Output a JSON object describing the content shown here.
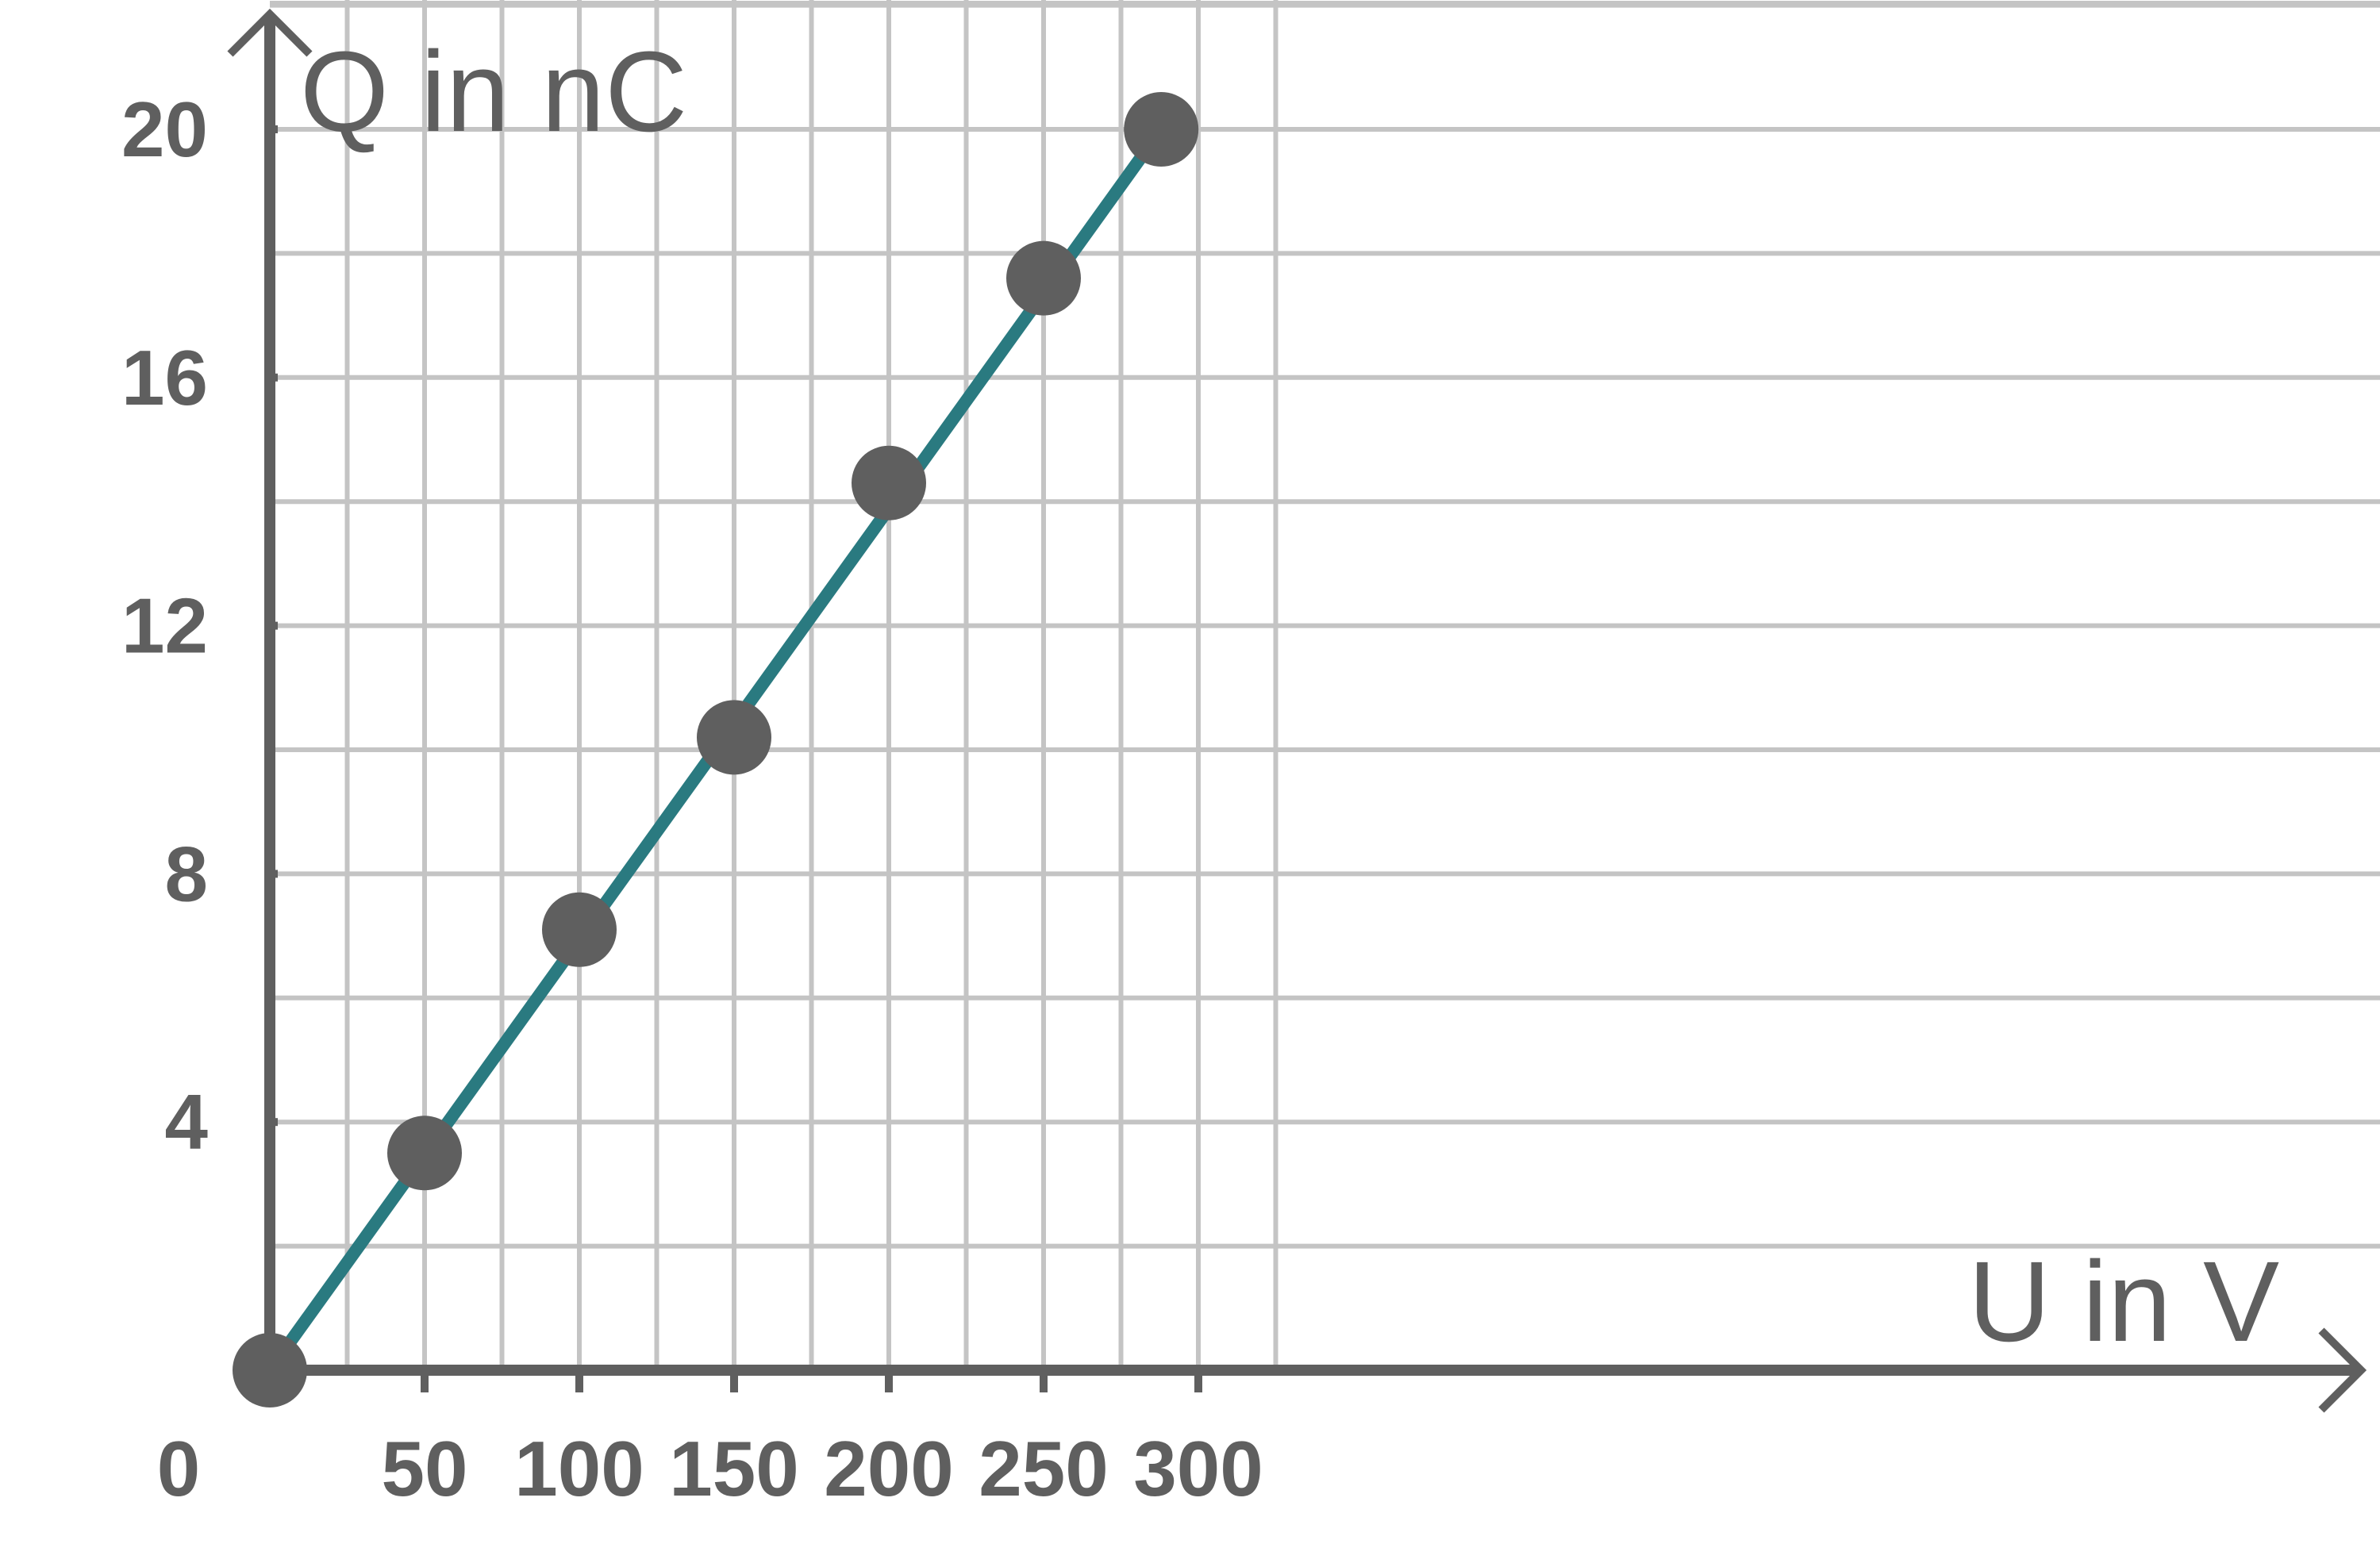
{
  "chart_data": {
    "type": "line",
    "title": "",
    "xlabel": "U in V",
    "ylabel": "Q in nC",
    "xlim": [
      0,
      325
    ],
    "ylim": [
      0,
      20.5
    ],
    "grid": true,
    "x_ticks": [
      0,
      50,
      100,
      150,
      200,
      250,
      300
    ],
    "y_ticks": [
      4,
      8,
      12,
      16,
      20
    ],
    "zero_label": "0",
    "points": [
      {
        "x": 0,
        "y": 0
      },
      {
        "x": 50,
        "y": 3.5
      },
      {
        "x": 100,
        "y": 7.1
      },
      {
        "x": 150,
        "y": 10.2
      },
      {
        "x": 200,
        "y": 14.3
      },
      {
        "x": 250,
        "y": 17.6
      },
      {
        "x": 288,
        "y": 20.0
      }
    ],
    "fit_line": {
      "from": [
        0,
        0
      ],
      "to": [
        288,
        20.0
      ]
    },
    "colors": {
      "line": "#2a7a80",
      "point": "#5f5f5f",
      "axis": "#5f5f5f",
      "grid": "#c4c4c4"
    }
  }
}
